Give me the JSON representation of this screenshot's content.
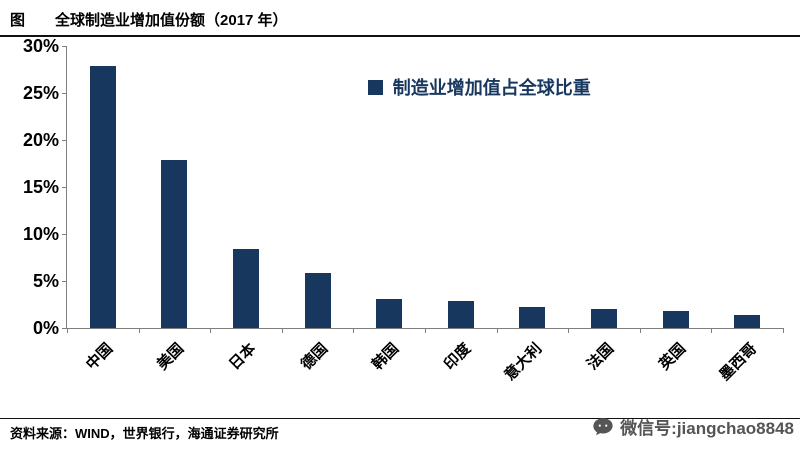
{
  "header": {
    "figure_label": "图",
    "title": "全球制造业增加值份额（2017 年）"
  },
  "chart_data": {
    "type": "bar",
    "title": "全球制造业增加值份额（2017 年）",
    "legend": "制造业增加值占全球比重",
    "categories": [
      "中国",
      "美国",
      "日本",
      "德国",
      "韩国",
      "印度",
      "意大利",
      "法国",
      "英国",
      "墨西哥"
    ],
    "values": [
      27.9,
      17.9,
      8.4,
      5.8,
      3.1,
      2.9,
      2.2,
      2.0,
      1.8,
      1.4
    ],
    "ylim": [
      0,
      30
    ],
    "yticks": [
      {
        "label": "30%",
        "value": 30
      },
      {
        "label": "25%",
        "value": 25
      },
      {
        "label": "20%",
        "value": 20
      },
      {
        "label": "15%",
        "value": 15
      },
      {
        "label": "10%",
        "value": 10
      },
      {
        "label": "5%",
        "value": 5
      },
      {
        "label": "0%",
        "value": 0
      }
    ],
    "bar_color": "#17375E",
    "legend_color": "#17375E",
    "grid": false,
    "legend_position": "inside-top-right"
  },
  "footer": {
    "source": "资料来源：WIND，世界银行，海通证券研究所"
  },
  "watermark": {
    "text": "微信号:jiangchao8848"
  }
}
